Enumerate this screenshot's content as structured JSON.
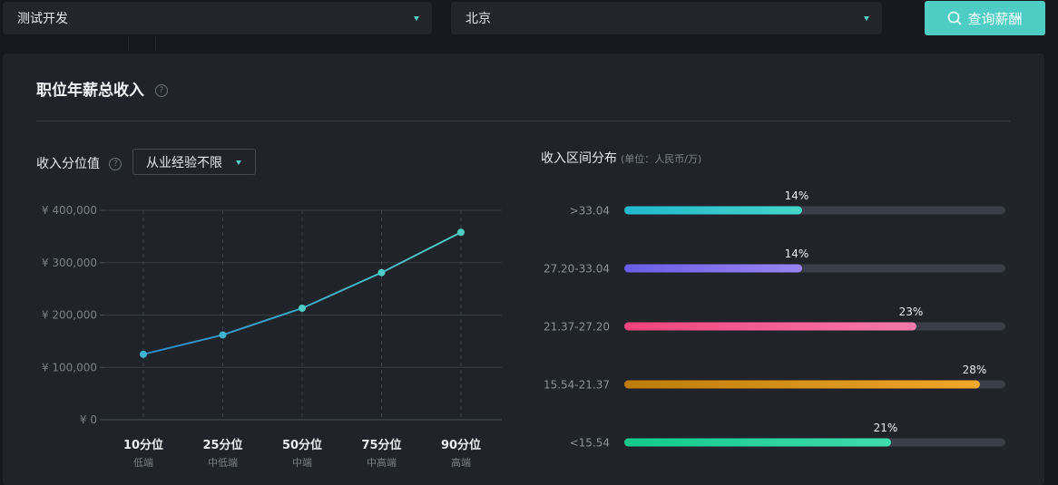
{
  "filters": {
    "job": "测试开发",
    "city": "北京",
    "query_button": "查询薪酬"
  },
  "card": {
    "title": "职位年薪总收入",
    "help_icon": "?"
  },
  "percentile_section": {
    "label": "收入分位值",
    "help_icon": "?",
    "experience_select": "从业经验不限"
  },
  "distribution_section": {
    "label": "收入区间分布",
    "unit": "(单位：人民币/万)"
  },
  "colors": {
    "accent": "#4ecdc4",
    "bar_track": "#3a3e49",
    "line_start": "#2b86c5",
    "line_end": "#4ecdc4"
  },
  "chart_data": [
    {
      "type": "line",
      "title": "收入分位值",
      "categories": [
        "10分位",
        "25分位",
        "50分位",
        "75分位",
        "90分位"
      ],
      "sublabels": [
        "低端",
        "中低端",
        "中端",
        "中高端",
        "高端"
      ],
      "values": [
        125000,
        162000,
        213000,
        281000,
        358000
      ],
      "ylim": [
        0,
        400000
      ],
      "yticks": [
        "¥ 0",
        "¥ 100,000",
        "¥ 200,000",
        "¥ 300,000",
        "¥ 400,000"
      ],
      "ytick_values": [
        0,
        100000,
        200000,
        300000,
        400000
      ],
      "grid": true
    },
    {
      "type": "bar",
      "orientation": "horizontal",
      "title": "收入区间分布",
      "categories": [
        ">33.04",
        "27.20-33.04",
        "21.37-27.20",
        "15.54-21.37",
        "<15.54"
      ],
      "values": [
        14,
        14,
        23,
        28,
        21
      ],
      "labels": [
        "14%",
        "14%",
        "23%",
        "28%",
        "21%"
      ],
      "xlim": [
        0,
        30
      ],
      "bar_colors": [
        [
          "#1fb8cf",
          "#45d6c8"
        ],
        [
          "#6a5ce8",
          "#9a84f0"
        ],
        [
          "#f0437a",
          "#f57aae"
        ],
        [
          "#c07a08",
          "#f0a82a"
        ],
        [
          "#12c98a",
          "#3fdcae"
        ]
      ]
    }
  ]
}
